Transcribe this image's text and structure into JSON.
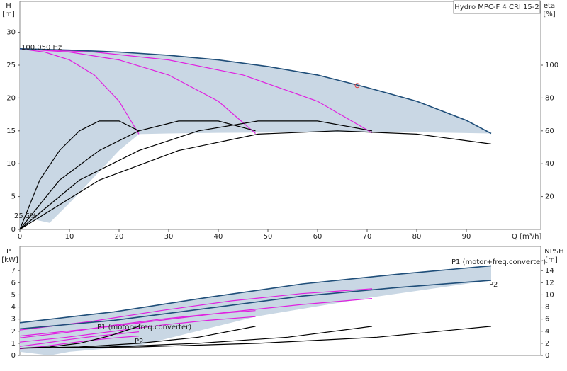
{
  "chart_data": [
    {
      "type": "line",
      "title": "Hydro MPC-F 4 CRI 15-2",
      "y_label": "H",
      "y_unit": "[m]",
      "y2_label": "eta",
      "y2_unit": "[%]",
      "x_label": "Q [m³/h]",
      "annotations": [
        "100.050 Hz",
        "25.5%"
      ],
      "xlim": [
        0,
        105
      ],
      "xticks": [
        0,
        10,
        20,
        30,
        40,
        50,
        60,
        70,
        80,
        90
      ],
      "ylim": [
        0,
        34.7
      ],
      "yticks": [
        0,
        5,
        10,
        15,
        20,
        25,
        30
      ],
      "y2lim": [
        0,
        138.8
      ],
      "y2ticks": [
        20,
        40,
        60,
        80,
        100
      ],
      "series": [
        {
          "type": "area",
          "color": "#c9d7e4",
          "x": [
            0,
            10,
            20,
            30,
            40,
            50,
            60,
            70,
            80,
            90,
            95,
            80,
            60,
            40,
            30,
            24,
            20,
            15,
            10,
            6,
            3,
            0
          ],
          "values": [
            27.5,
            27.3,
            27.0,
            26.5,
            25.8,
            24.8,
            23.5,
            21.6,
            19.5,
            16.6,
            14.6,
            14.8,
            14.8,
            14.7,
            14.6,
            14.5,
            12,
            8,
            4,
            1,
            1.5,
            0
          ]
        },
        {
          "color": "#e020e0",
          "x": [
            0,
            5,
            10,
            15,
            20,
            24
          ],
          "values": [
            27.5,
            27.0,
            25.8,
            23.5,
            19.5,
            14.5
          ]
        },
        {
          "color": "#e020e0",
          "x": [
            0,
            10,
            20,
            30,
            40,
            47.5
          ],
          "values": [
            27.5,
            27.0,
            25.8,
            23.5,
            19.5,
            14.6
          ]
        },
        {
          "color": "#e020e0",
          "x": [
            0,
            15,
            30,
            45,
            60,
            71
          ],
          "values": [
            27.5,
            27.0,
            25.8,
            23.5,
            19.5,
            14.7
          ]
        },
        {
          "color": "#1f4e79",
          "x": [
            0,
            10,
            20,
            30,
            40,
            50,
            60,
            70,
            80,
            90,
            95
          ],
          "values": [
            27.5,
            27.3,
            27.0,
            26.5,
            25.8,
            24.8,
            23.5,
            21.6,
            19.5,
            16.6,
            14.6
          ]
        },
        {
          "color": "#000000",
          "axis": "y2",
          "x": [
            0,
            4,
            8,
            12,
            16,
            20,
            24
          ],
          "values": [
            0,
            30,
            48,
            60,
            66,
            66,
            60
          ]
        },
        {
          "color": "#000000",
          "axis": "y2",
          "x": [
            0,
            8,
            16,
            24,
            32,
            40,
            47.5
          ],
          "values": [
            0,
            30,
            48,
            60,
            66,
            66,
            60
          ]
        },
        {
          "color": "#000000",
          "axis": "y2",
          "x": [
            0,
            12,
            24,
            36,
            48,
            60,
            71
          ],
          "values": [
            0,
            30,
            48,
            60,
            66,
            66,
            60
          ]
        },
        {
          "color": "#000000",
          "axis": "y2",
          "x": [
            0,
            16,
            32,
            48,
            64,
            80,
            95
          ],
          "values": [
            0,
            30,
            48,
            58,
            60,
            58,
            52
          ]
        }
      ],
      "duty_point": {
        "x": 68,
        "y": 21.9,
        "color": "#e04040"
      }
    },
    {
      "type": "line",
      "y_label": "P",
      "y_unit": "[kW]",
      "y2_label": "NPSH",
      "y2_unit": "[m]",
      "annotations": [
        "P1 (motor+freq.converter)",
        "P2",
        "P1 (motor+freq.converter)",
        "P2"
      ],
      "xlim": [
        0,
        105
      ],
      "ylim": [
        0,
        9
      ],
      "yticks": [
        0,
        1,
        2,
        3,
        4,
        5,
        6,
        7
      ],
      "y2lim": [
        0,
        18
      ],
      "y2ticks": [
        0,
        2,
        4,
        6,
        8,
        10,
        12,
        14
      ],
      "series": [
        {
          "type": "area",
          "color": "#c9d7e4",
          "x": [
            0,
            19,
            38,
            57,
            76,
            95,
            95,
            71,
            47.5,
            24,
            10,
            6,
            0
          ],
          "values": [
            2.7,
            3.6,
            4.8,
            5.9,
            6.7,
            7.4,
            6.2,
            4.8,
            3.2,
            0.8,
            0.3,
            0,
            0.3
          ]
        },
        {
          "color": "#e020e0",
          "x": [
            0,
            4.8,
            9.6,
            14.4,
            19.2,
            24
          ],
          "values": [
            0.75,
            1.0,
            1.3,
            1.55,
            1.75,
            1.95
          ]
        },
        {
          "color": "#e020e0",
          "x": [
            0,
            4.8,
            9.6,
            14.4,
            19.2,
            24
          ],
          "values": [
            0.55,
            0.75,
            1.0,
            1.25,
            1.45,
            1.6
          ]
        },
        {
          "color": "#e020e0",
          "x": [
            0,
            9.5,
            19,
            28.5,
            38,
            47.5
          ],
          "values": [
            1.45,
            1.9,
            2.5,
            3.0,
            3.4,
            3.7
          ]
        },
        {
          "color": "#e020e0",
          "x": [
            0,
            9.5,
            19,
            28.5,
            38,
            47.5
          ],
          "values": [
            1.1,
            1.5,
            2.0,
            2.5,
            2.9,
            3.2
          ]
        },
        {
          "color": "#e020e0",
          "x": [
            0,
            14.2,
            28.4,
            42.6,
            56.8,
            71
          ],
          "values": [
            2.1,
            2.8,
            3.7,
            4.5,
            5.1,
            5.5
          ]
        },
        {
          "color": "#e020e0",
          "x": [
            0,
            14.2,
            28.4,
            42.6,
            56.8,
            71
          ],
          "values": [
            1.6,
            2.2,
            2.9,
            3.6,
            4.2,
            4.7
          ]
        },
        {
          "color": "#1f4e79",
          "x": [
            0,
            19,
            38,
            57,
            76,
            95
          ],
          "values": [
            2.7,
            3.6,
            4.8,
            5.9,
            6.7,
            7.4
          ]
        },
        {
          "color": "#1f4e79",
          "x": [
            0,
            19,
            38,
            57,
            76,
            95
          ],
          "values": [
            2.2,
            2.9,
            3.9,
            4.9,
            5.6,
            6.2
          ]
        },
        {
          "color": "#000000",
          "axis": "y2",
          "x": [
            0,
            6,
            12,
            18,
            24
          ],
          "values": [
            1.2,
            1.4,
            2.0,
            3.2,
            4.8
          ]
        },
        {
          "color": "#000000",
          "axis": "y2",
          "x": [
            0,
            12,
            24,
            36,
            47.5
          ],
          "values": [
            1.2,
            1.4,
            2.0,
            3.0,
            4.8
          ]
        },
        {
          "color": "#000000",
          "axis": "y2",
          "x": [
            0,
            18,
            36,
            54,
            71
          ],
          "values": [
            1.2,
            1.4,
            2.0,
            3.0,
            4.8
          ]
        },
        {
          "color": "#000000",
          "axis": "y2",
          "x": [
            0,
            24,
            48,
            72,
            95
          ],
          "values": [
            1.2,
            1.4,
            2.0,
            3.0,
            4.8
          ]
        }
      ]
    }
  ]
}
